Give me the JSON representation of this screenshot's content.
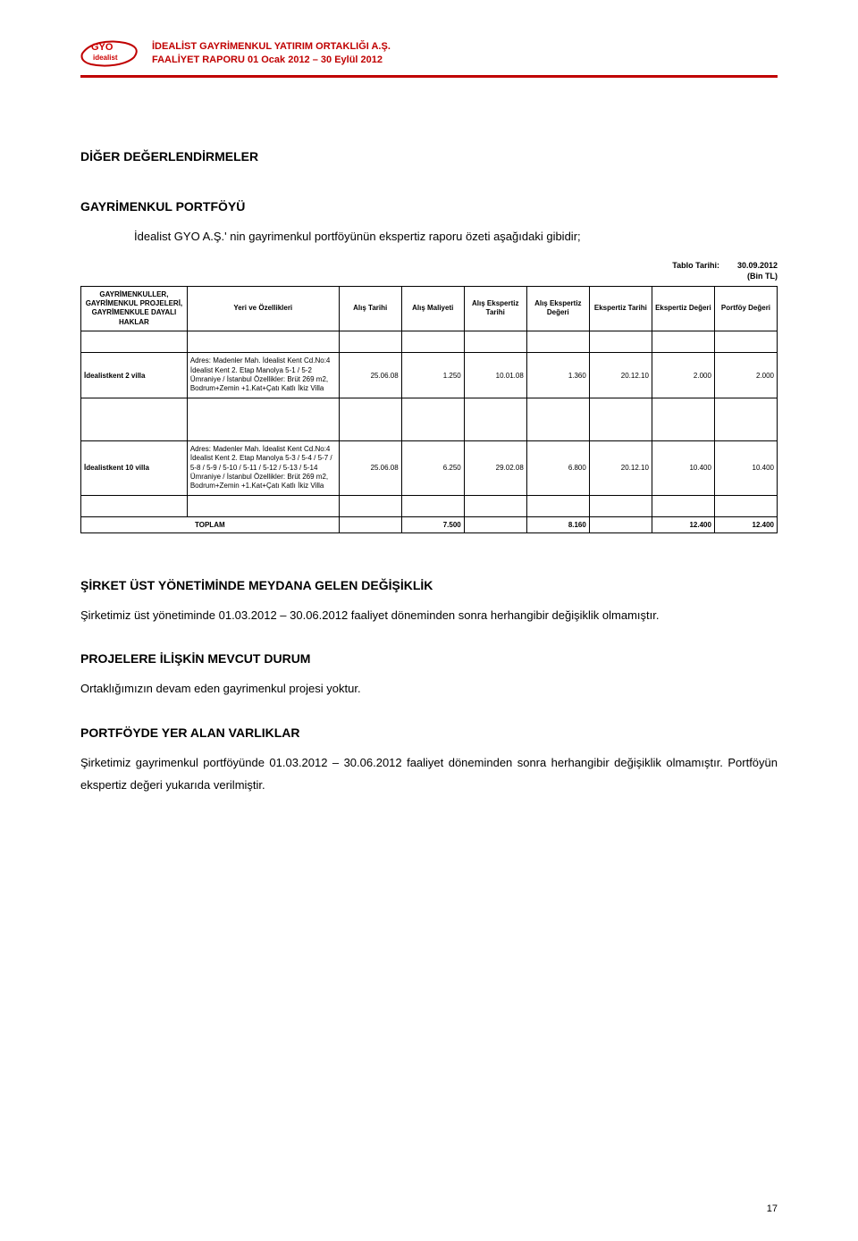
{
  "header": {
    "logo_main": "GYO",
    "logo_sub": "idealist",
    "line1": "İDEALİST GAYRİMENKUL YATIRIM ORTAKLIĞI A.Ş.",
    "line2": "FAALİYET RAPORU 01 Ocak 2012 – 30 Eylül 2012"
  },
  "sections": {
    "diger": "DİĞER DEĞERLENDİRMELER",
    "portfoy": "GAYRİMENKUL PORTFÖYÜ",
    "intro": "İdealist GYO A.Ş.' nin gayrimenkul portföyünün ekspertiz raporu özeti aşağıdaki gibidir;",
    "degisiklik": "ŞİRKET ÜST YÖNETİMİNDE MEYDANA GELEN DEĞİŞİKLİK",
    "degisiklik_text": "Şirketimiz üst yönetiminde 01.03.2012 – 30.06.2012 faaliyet döneminden sonra herhangibir değişiklik olmamıştır.",
    "projelere": "PROJELERE İLİŞKİN MEVCUT DURUM",
    "projelere_text": "Ortaklığımızın devam eden gayrimenkul projesi yoktur.",
    "portfoyde": "PORTFÖYDE YER ALAN VARLIKLAR",
    "portfoyde_text": "Şirketimiz gayrimenkul portföyünde 01.03.2012 – 30.06.2012 faaliyet döneminden sonra herhangibir değişiklik olmamıştır. Portföyün ekspertiz değeri yukarıda verilmiştir."
  },
  "table": {
    "tablo_tarihi_label": "Tablo Tarihi:",
    "tablo_tarihi_value": "30.09.2012",
    "bin_tl": "(Bin TL)",
    "headers": {
      "c0": "GAYRİMENKULLER, GAYRİMENKUL PROJELERİ, GAYRİMENKULE DAYALI HAKLAR",
      "c1": "Yeri ve Özellikleri",
      "c2": "Alış Tarihi",
      "c3": "Alış Maliyeti",
      "c4": "Alış Ekspertiz Tarihi",
      "c5": "Alış Ekspertiz Değeri",
      "c6": "Ekspertiz Tarihi",
      "c7": "Ekspertiz Değeri",
      "c8": "Portföy Değeri"
    },
    "rows": [
      {
        "name": "İdealistkent 2 villa",
        "desc": "Adres: Madenler Mah. İdealist Kent Cd.No:4 İdealist Kent 2. Etap Manolya 5-1 / 5-2 Ümraniye / İstanbul Özellikler: Brüt 269 m2, Bodrum+Zemin +1.Kat+Çatı Katlı İkiz Villa",
        "v2": "25.06.08",
        "v3": "1.250",
        "v4": "10.01.08",
        "v5": "1.360",
        "v6": "20.12.10",
        "v7": "2.000",
        "v8": "2.000"
      },
      {
        "name": "İdealistkent 10 villa",
        "desc": "Adres: Madenler Mah. İdealist Kent Cd.No:4 İdealist Kent 2. Etap Manolya 5-3 / 5-4 / 5-7 / 5-8 / 5-9 / 5-10 / 5-11 / 5-12 / 5-13 / 5-14 Ümraniye / İstanbul Özellikler: Brüt 269 m2, Bodrum+Zemin +1.Kat+Çatı Katlı İkiz Villa",
        "v2": "25.06.08",
        "v3": "6.250",
        "v4": "29.02.08",
        "v5": "6.800",
        "v6": "20.12.10",
        "v7": "10.400",
        "v8": "10.400"
      }
    ],
    "toplam": {
      "label": "TOPLAM",
      "v3": "7.500",
      "v5": "8.160",
      "v7": "12.400",
      "v8": "12.400"
    }
  },
  "page_number": "17"
}
